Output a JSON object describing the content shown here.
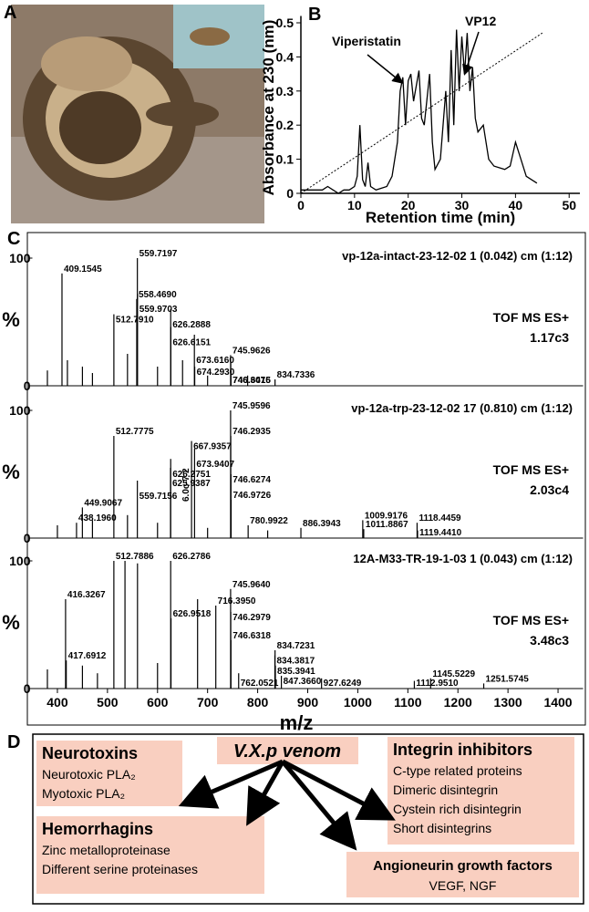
{
  "panel_labels": [
    "A",
    "B",
    "C",
    "D"
  ],
  "chart_data": [
    {
      "type": "line",
      "x_label": "Retention time (min)",
      "y_label": "Absorbance at 230 (nm)",
      "xlim": [
        0,
        52
      ],
      "ylim": [
        0,
        0.52
      ],
      "xticks": [
        0,
        10,
        20,
        30,
        40,
        50
      ],
      "yticks": [
        0,
        0.1,
        0.2,
        0.3,
        0.4,
        0.5
      ],
      "annotations": [
        "Viperistatin",
        "VP12"
      ],
      "series": [
        {
          "color": "#000000",
          "x": [
            0,
            4,
            5,
            6,
            7,
            8,
            9,
            10,
            10.5,
            11,
            11.5,
            12,
            12.5,
            13,
            14,
            16,
            17,
            18,
            18.5,
            19,
            19.5,
            20,
            20.5,
            21,
            22,
            22.5,
            23,
            24,
            24.5,
            25,
            26,
            27,
            27.5,
            28,
            28.5,
            29,
            29.5,
            30,
            30.5,
            31,
            31.5,
            32,
            32.5,
            33,
            34,
            35,
            36,
            38,
            39,
            40,
            41,
            42,
            44
          ],
          "values": [
            0.01,
            0.01,
            0.02,
            0.01,
            0,
            0.01,
            0.01,
            0.02,
            0.05,
            0.2,
            0.04,
            0.02,
            0.09,
            0.02,
            0.01,
            0.02,
            0.05,
            0.15,
            0.3,
            0.34,
            0.2,
            0.33,
            0.35,
            0.27,
            0.36,
            0.22,
            0.2,
            0.35,
            0.15,
            0.07,
            0.1,
            0.3,
            0.15,
            0.42,
            0.2,
            0.48,
            0.3,
            0.46,
            0.35,
            0.47,
            0.3,
            0.37,
            0.22,
            0.18,
            0.2,
            0.1,
            0.08,
            0.07,
            0.08,
            0.15,
            0.1,
            0.05,
            0.03
          ]
        },
        {
          "color": "#000000",
          "dashed": true,
          "x": [
            0,
            45
          ],
          "values": [
            0,
            0.47
          ]
        }
      ]
    },
    {
      "type": "spectrum",
      "title": "vp-12a-intact-23-12-02 1 (0.042) cm (1:12)",
      "instrument": "TOF MS ES+",
      "intensity": "1.17c3",
      "y_label": "%",
      "xlim": [
        350,
        1450
      ],
      "ylim": [
        0,
        100
      ],
      "yticks": [
        0,
        100
      ],
      "color": "#000000",
      "x": [
        559.7197,
        409.1545,
        558.469,
        559.9703,
        512.791,
        626.2888,
        626.6151,
        673.616,
        674.293,
        745.9626,
        746.3076,
        746.6415,
        834.7336,
        380,
        420,
        450,
        470,
        540,
        600,
        650,
        700,
        780
      ],
      "values": [
        100,
        88,
        68,
        72,
        56,
        60,
        46,
        40,
        15,
        24,
        18,
        12,
        5,
        12,
        20,
        15,
        10,
        25,
        15,
        20,
        8,
        8
      ],
      "x_labels": [
        "559.7197",
        "409.1545",
        "558.4690",
        "559.9703",
        "512.7910",
        "626.2888",
        "626.6151",
        "673.6160",
        "674.2930",
        "745.9626",
        "746.3076",
        "746.6415",
        "834.7336",
        null,
        null,
        null,
        null,
        null,
        null,
        null,
        null,
        null
      ]
    },
    {
      "type": "spectrum",
      "title": "vp-12a-trp-23-12-02 17 (0.810) cm (1:12)",
      "instrument": "TOF MS ES+",
      "intensity": "2.03c4",
      "y_label": "%",
      "xlim": [
        350,
        1450
      ],
      "ylim": [
        0,
        100
      ],
      "yticks": [
        0,
        100
      ],
      "color": "#000000",
      "annotations": [
        "6.0c-7 2"
      ],
      "x": [
        745.9596,
        512.7775,
        746.2935,
        667.9357,
        673.9407,
        626.2751,
        625.9387,
        746.6274,
        559.7156,
        746.9726,
        449.9067,
        438.196,
        1009.9176,
        1118.4459,
        780.9922,
        886.3943,
        1011.8867,
        1119.441,
        400,
        470,
        540,
        600,
        700,
        820
      ],
      "values": [
        100,
        80,
        80,
        76,
        70,
        62,
        55,
        50,
        45,
        30,
        24,
        12,
        14,
        12,
        10,
        8,
        7,
        6,
        10,
        14,
        18,
        12,
        8,
        6
      ],
      "x_labels": [
        "745.9596",
        "512.7775",
        "746.2935",
        "667.9357",
        "673.9407",
        "626.2751",
        "625.9387",
        "746.6274",
        "559.7156",
        "746.9726",
        "449.9067",
        "438.1960",
        "1009.9176",
        "1118.4459",
        "780.9922",
        "886.3943",
        "1011.8867",
        "1119.4410",
        null,
        null,
        null,
        null,
        null,
        null
      ]
    },
    {
      "type": "spectrum",
      "title": "12A-M33-TR-19-1-03 1 (0.043) cm (1:12)",
      "instrument": "TOF MS ES+",
      "intensity": "3.48c3",
      "y_label": "%",
      "x_label": "m/z",
      "xlim": [
        350,
        1450
      ],
      "ylim": [
        0,
        100
      ],
      "yticks": [
        0,
        100
      ],
      "xticks": [
        400,
        500,
        600,
        700,
        800,
        900,
        1000,
        1100,
        1200,
        1300,
        1400
      ],
      "color": "#000000",
      "x": [
        512.7886,
        626.2786,
        745.964,
        416.3267,
        716.395,
        746.2979,
        626.9518,
        746.6318,
        834.7231,
        834.3817,
        417.6912,
        835.3941,
        762.0521,
        847.366,
        927.6249,
        1145.5229,
        1112.951,
        1251.5745,
        535,
        560,
        380,
        450,
        480,
        600,
        680
      ],
      "values": [
        100,
        100,
        78,
        70,
        65,
        60,
        55,
        38,
        30,
        26,
        22,
        18,
        12,
        10,
        8,
        8,
        6,
        4,
        100,
        98,
        15,
        18,
        12,
        20,
        70
      ],
      "x_labels": [
        "512.7886",
        "626.2786",
        "745.9640",
        "416.3267",
        "716.3950",
        "746.2979",
        "626.9518",
        "746.6318",
        "834.7231",
        "834.3817",
        "417.6912",
        "835.3941",
        "762.0521",
        "847.3660",
        "927.6249",
        "1145.5229",
        "1112.9510",
        "1251.5745",
        null,
        null,
        null,
        null,
        null,
        null,
        null
      ]
    }
  ],
  "diagram": {
    "center": "V.X.p venom",
    "groups": [
      {
        "title": "Neurotoxins",
        "items": [
          "Neurotoxic PLA₂",
          "Myotoxic PLA₂"
        ]
      },
      {
        "title": "Hemorrhagins",
        "items": [
          "Zinc metalloproteinase",
          "Different serine proteinases"
        ]
      },
      {
        "title": "Integrin inhibitors",
        "items": [
          "C-type related proteins",
          "Dimeric disintegrin",
          "Cystein rich disintegrin",
          "Short disintegrins"
        ]
      },
      {
        "title": "Angioneurin growth factors",
        "items": [
          "VEGF, NGF"
        ]
      }
    ]
  }
}
